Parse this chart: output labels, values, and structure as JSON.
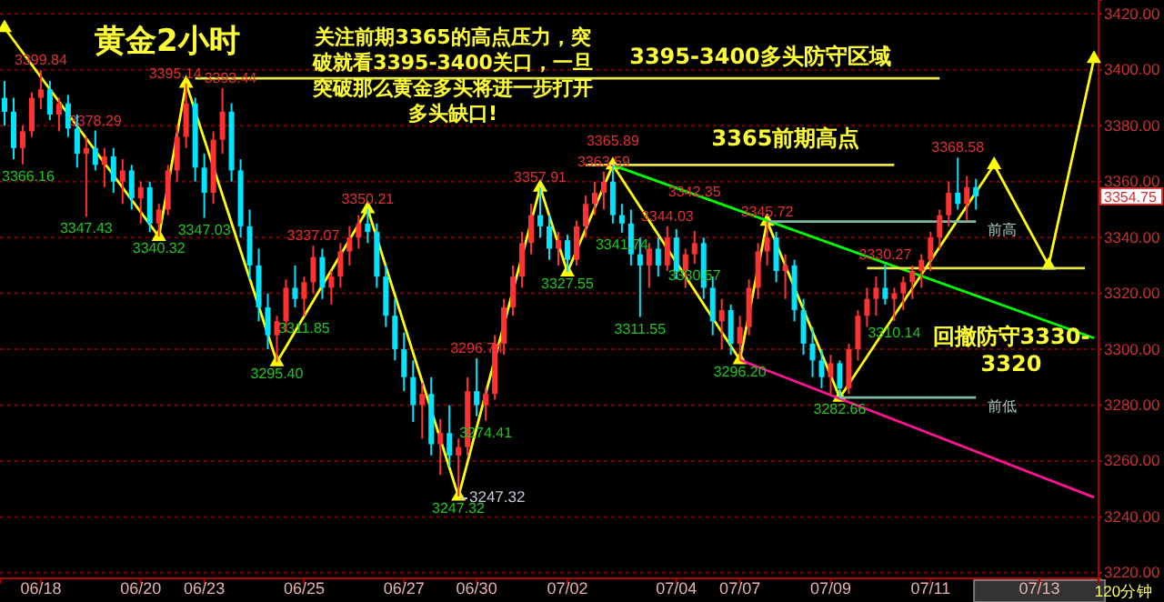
{
  "chart_data": {
    "type": "candlestick",
    "title": "黄金2小时",
    "categories": [
      null,
      null,
      null,
      null,
      "06/18",
      null,
      null,
      null,
      null,
      null,
      null,
      null,
      null,
      null,
      null,
      "06/20",
      null,
      null,
      null,
      null,
      null,
      null,
      "06/23",
      null,
      null,
      null,
      null,
      null,
      null,
      null,
      null,
      null,
      null,
      "06/25",
      null,
      null,
      null,
      null,
      null,
      null,
      null,
      null,
      null,
      null,
      "06/27",
      null,
      null,
      null,
      null,
      null,
      null,
      null,
      "06/30",
      null,
      null,
      null,
      null,
      null,
      null,
      null,
      null,
      null,
      "07/02",
      null,
      null,
      null,
      null,
      null,
      null,
      null,
      null,
      null,
      null,
      null,
      "07/04",
      null,
      null,
      null,
      null,
      null,
      null,
      "07/07",
      null,
      null,
      null,
      null,
      null,
      null,
      null,
      null,
      null,
      "07/09",
      null,
      null,
      null,
      null,
      null,
      null,
      null,
      null,
      null,
      null,
      "07/11",
      null,
      null,
      null,
      null,
      null,
      null,
      null,
      null,
      null,
      null,
      null,
      "07/13",
      null,
      null,
      null,
      null,
      null,
      null
    ],
    "ohlc": [
      [
        3390,
        3396,
        3380,
        3385
      ],
      [
        3385,
        3390,
        3368,
        3372
      ],
      [
        3372,
        3380,
        3366.16,
        3378
      ],
      [
        3378,
        3392,
        3376,
        3390
      ],
      [
        3390,
        3399.84,
        3386,
        3393
      ],
      [
        3393,
        3396,
        3382,
        3384
      ],
      [
        3384,
        3390,
        3378,
        3388
      ],
      [
        3388,
        3391,
        3376,
        3379
      ],
      [
        3379,
        3384,
        3365,
        3370
      ],
      [
        3370,
        3376,
        3347.43,
        3372
      ],
      [
        3372,
        3378.29,
        3364,
        3366
      ],
      [
        3366,
        3372,
        3358,
        3369
      ],
      [
        3369,
        3372,
        3356,
        3360
      ],
      [
        3360,
        3368,
        3352,
        3364
      ],
      [
        3364,
        3366,
        3350,
        3354
      ],
      [
        3354,
        3360,
        3345,
        3358
      ],
      [
        3358,
        3360,
        3342,
        3345
      ],
      [
        3345,
        3352,
        3340.32,
        3350
      ],
      [
        3350,
        3366,
        3348,
        3364
      ],
      [
        3364,
        3380,
        3360,
        3376
      ],
      [
        3376,
        3395.14,
        3372,
        3388
      ],
      [
        3388,
        3390,
        3360,
        3365
      ],
      [
        3365,
        3370,
        3347.03,
        3356
      ],
      [
        3356,
        3378,
        3352,
        3375
      ],
      [
        3375,
        3393.44,
        3370,
        3385
      ],
      [
        3385,
        3388,
        3360,
        3364
      ],
      [
        3364,
        3368,
        3340,
        3344
      ],
      [
        3344,
        3350,
        3325,
        3330
      ],
      [
        3330,
        3336,
        3310,
        3315
      ],
      [
        3315,
        3320,
        3300,
        3305
      ],
      [
        3305,
        3312,
        3295.4,
        3310
      ],
      [
        3310,
        3325,
        3306,
        3322
      ],
      [
        3322,
        3330,
        3315,
        3318
      ],
      [
        3318,
        3326,
        3311.85,
        3324
      ],
      [
        3324,
        3337.07,
        3320,
        3333
      ],
      [
        3333,
        3336,
        3318,
        3322
      ],
      [
        3322,
        3328,
        3316,
        3326
      ],
      [
        3326,
        3338,
        3322,
        3335
      ],
      [
        3335,
        3344,
        3330,
        3340
      ],
      [
        3340,
        3348,
        3336,
        3345
      ],
      [
        3345,
        3350.21,
        3338,
        3342
      ],
      [
        3342,
        3345,
        3322,
        3326
      ],
      [
        3326,
        3330,
        3308,
        3312
      ],
      [
        3312,
        3318,
        3296,
        3300
      ],
      [
        3300,
        3306,
        3285,
        3290
      ],
      [
        3290,
        3296,
        3274,
        3280
      ],
      [
        3280,
        3288,
        3268,
        3284
      ],
      [
        3284,
        3290,
        3262,
        3266
      ],
      [
        3266,
        3275,
        3255,
        3270
      ],
      [
        3270,
        3280,
        3258,
        3262
      ],
      [
        3262,
        3268,
        3247.32,
        3265
      ],
      [
        3265,
        3290,
        3262,
        3285
      ],
      [
        3285,
        3296.74,
        3276,
        3280
      ],
      [
        3280,
        3286,
        3274.41,
        3284
      ],
      [
        3284,
        3305,
        3282,
        3302
      ],
      [
        3302,
        3318,
        3298,
        3315
      ],
      [
        3315,
        3330,
        3312,
        3326
      ],
      [
        3326,
        3342,
        3322,
        3338
      ],
      [
        3338,
        3352,
        3334,
        3348
      ],
      [
        3348,
        3357.91,
        3340,
        3344
      ],
      [
        3344,
        3348,
        3332,
        3336
      ],
      [
        3336,
        3342,
        3330,
        3339
      ],
      [
        3339,
        3341,
        3327.55,
        3332
      ],
      [
        3332,
        3346,
        3330,
        3344
      ],
      [
        3344,
        3355,
        3340,
        3352
      ],
      [
        3352,
        3360,
        3348,
        3356
      ],
      [
        3356,
        3363.59,
        3350,
        3360
      ],
      [
        3360,
        3365.89,
        3345,
        3348
      ],
      [
        3348,
        3352,
        3341.74,
        3345
      ],
      [
        3345,
        3350,
        3330,
        3334
      ],
      [
        3334,
        3340,
        3311.55,
        3330
      ],
      [
        3330,
        3338,
        3322,
        3336
      ],
      [
        3336,
        3340,
        3326,
        3330
      ],
      [
        3330,
        3344.03,
        3328,
        3340
      ],
      [
        3340,
        3343,
        3325,
        3328
      ],
      [
        3328,
        3336,
        3322,
        3334
      ],
      [
        3334,
        3342.35,
        3330.57,
        3338
      ],
      [
        3338,
        3340,
        3318,
        3322
      ],
      [
        3322,
        3326,
        3305,
        3310
      ],
      [
        3310,
        3318,
        3300,
        3314
      ],
      [
        3314,
        3316,
        3298,
        3302
      ],
      [
        3302,
        3312,
        3296.2,
        3308
      ],
      [
        3308,
        3325,
        3305,
        3322
      ],
      [
        3322,
        3338,
        3318,
        3335
      ],
      [
        3335,
        3345.72,
        3330,
        3340
      ],
      [
        3340,
        3342,
        3324,
        3328
      ],
      [
        3328,
        3334,
        3318,
        3330
      ],
      [
        3330,
        3332,
        3310,
        3314
      ],
      [
        3314,
        3318,
        3298,
        3302
      ],
      [
        3302,
        3308,
        3290,
        3296
      ],
      [
        3296,
        3300,
        3286,
        3290
      ],
      [
        3290,
        3298,
        3284,
        3295
      ],
      [
        3295,
        3296,
        3282.66,
        3286
      ],
      [
        3286,
        3302,
        3284,
        3300
      ],
      [
        3300,
        3314,
        3296,
        3312
      ],
      [
        3312,
        3322,
        3308,
        3318
      ],
      [
        3318,
        3326,
        3312,
        3322
      ],
      [
        3322,
        3330.27,
        3316,
        3318
      ],
      [
        3318,
        3322,
        3310.14,
        3320
      ],
      [
        3320,
        3326,
        3314,
        3324
      ],
      [
        3324,
        3330,
        3318,
        3328
      ],
      [
        3328,
        3334,
        3322,
        3332
      ],
      [
        3332,
        3342,
        3328,
        3340
      ],
      [
        3340,
        3350,
        3336,
        3348
      ],
      [
        3348,
        3360,
        3344,
        3356
      ],
      [
        3356,
        3368.58,
        3350,
        3352
      ],
      [
        3352,
        3362,
        3346,
        3358
      ],
      [
        3358,
        3361,
        3350,
        3354.75
      ],
      null,
      null,
      null,
      null,
      null,
      null,
      null,
      null,
      null,
      null,
      null,
      null,
      null
    ],
    "colors": [
      "#00e5ff",
      "#00e5ff",
      "#ff3232",
      "#ff3232",
      "#ff3232",
      "#00e5ff",
      "#ff3232",
      "#00e5ff",
      "#00e5ff",
      "#ff3232",
      "#00e5ff",
      "#ff3232",
      "#00e5ff",
      "#ff3232",
      "#00e5ff",
      "#ff3232",
      "#00e5ff",
      "#ff3232",
      "#ff3232",
      "#ff3232",
      "#ff3232",
      "#00e5ff",
      "#00e5ff",
      "#ff3232",
      "#ff3232",
      "#00e5ff",
      "#00e5ff",
      "#00e5ff",
      "#00e5ff",
      "#00e5ff",
      "#ff3232",
      "#ff3232",
      "#00e5ff",
      "#ff3232",
      "#ff3232",
      "#00e5ff",
      "#ff3232",
      "#ff3232",
      "#ff3232",
      "#ff3232",
      "#00e5ff",
      "#00e5ff",
      "#00e5ff",
      "#00e5ff",
      "#00e5ff",
      "#00e5ff",
      "#ff3232",
      "#00e5ff",
      "#ff3232",
      "#00e5ff",
      "#ff3232",
      "#ff3232",
      "#00e5ff",
      "#ff3232",
      "#ff3232",
      "#ff3232",
      "#ff3232",
      "#ff3232",
      "#ff3232",
      "#00e5ff",
      "#00e5ff",
      "#ff3232",
      "#00e5ff",
      "#ff3232",
      "#ff3232",
      "#ff3232",
      "#ff3232",
      "#00e5ff",
      "#00e5ff",
      "#00e5ff",
      "#00e5ff",
      "#ff3232",
      "#00e5ff",
      "#ff3232",
      "#00e5ff",
      "#ff3232",
      "#ff3232",
      "#00e5ff",
      "#00e5ff",
      "#ff3232",
      "#00e5ff",
      "#ff3232",
      "#ff3232",
      "#ff3232",
      "#ff3232",
      "#00e5ff",
      "#ff3232",
      "#00e5ff",
      "#00e5ff",
      "#00e5ff",
      "#00e5ff",
      "#ff3232",
      "#00e5ff",
      "#ff3232",
      "#ff3232",
      "#ff3232",
      "#ff3232",
      "#00e5ff",
      "#ff3232",
      "#ff3232",
      "#ff3232",
      "#ff3232",
      "#ff3232",
      "#ff3232",
      "#ff3232",
      "#00e5ff",
      "#ff3232",
      "#00e5ff",
      null,
      null,
      null,
      null,
      null,
      null,
      null,
      null,
      null,
      null,
      null,
      null,
      null
    ],
    "ylim": [
      3218,
      3425
    ],
    "yticks": [
      {
        "value": 3220,
        "label": "3220.00"
      },
      {
        "value": 3240,
        "label": "3240.00"
      },
      {
        "value": 3260,
        "label": "3260.00"
      },
      {
        "value": 3280,
        "label": "3280.00"
      },
      {
        "value": 3300,
        "label": "3300.00"
      },
      {
        "value": 3320,
        "label": "3320.00"
      },
      {
        "value": 3340,
        "label": "3340.00"
      },
      {
        "value": 3360,
        "label": "3360.00"
      },
      {
        "value": 3380,
        "label": "3380.00"
      },
      {
        "value": 3400,
        "label": "3400.00"
      },
      {
        "value": 3420,
        "label": "3420.00"
      }
    ],
    "grid": "y",
    "series": [
      {
        "type": "line",
        "color": "#ffff00",
        "marker": "triangle",
        "values": [
          3415,
          null,
          null,
          null,
          null,
          null,
          null,
          null,
          null,
          null,
          null,
          null,
          null,
          null,
          null,
          null,
          null,
          3340.3,
          null,
          null,
          3395.1,
          null,
          null,
          null,
          null,
          null,
          null,
          null,
          null,
          null,
          3295.4,
          null,
          null,
          null,
          null,
          null,
          null,
          null,
          null,
          null,
          3350.2,
          null,
          null,
          null,
          null,
          null,
          null,
          null,
          null,
          null,
          3247.3,
          null,
          null,
          null,
          null,
          null,
          null,
          null,
          null,
          3357.9,
          null,
          null,
          3327.6,
          null,
          null,
          null,
          null,
          3365.9,
          null,
          null,
          null,
          null,
          null,
          null,
          null,
          null,
          null,
          null,
          null,
          null,
          null,
          3296.2,
          null,
          null,
          3345.7,
          null,
          null,
          null,
          null,
          null,
          null,
          null,
          3282.7,
          null,
          null,
          null,
          null,
          null,
          null,
          null,
          null,
          null,
          null,
          null,
          null,
          null,
          null,
          null,
          null,
          3366,
          null,
          null,
          null,
          null,
          null,
          3330,
          null,
          null,
          null,
          null,
          3404
        ]
      },
      {
        "type": "line",
        "color": "#00ff00",
        "values": [
          null,
          null,
          null,
          null,
          null,
          null,
          null,
          null,
          null,
          null,
          null,
          null,
          null,
          null,
          null,
          null,
          null,
          null,
          null,
          null,
          null,
          null,
          null,
          null,
          null,
          null,
          null,
          null,
          null,
          null,
          null,
          null,
          null,
          null,
          null,
          null,
          null,
          null,
          null,
          null,
          null,
          null,
          null,
          null,
          null,
          null,
          null,
          null,
          null,
          null,
          null,
          null,
          null,
          null,
          null,
          null,
          null,
          null,
          null,
          null,
          null,
          null,
          null,
          null,
          null,
          null,
          null,
          3365.9,
          null,
          null,
          null,
          null,
          null,
          null,
          null,
          null,
          null,
          null,
          null,
          null,
          null,
          null,
          null,
          null,
          null,
          null,
          null,
          null,
          null,
          null,
          null,
          null,
          null,
          null,
          null,
          null,
          null,
          null,
          null,
          null,
          null,
          null,
          null,
          null,
          null,
          null,
          null,
          null,
          null,
          null,
          null,
          null,
          null,
          null,
          null,
          null,
          null,
          null,
          null,
          null,
          3304
        ]
      },
      {
        "type": "line",
        "color": "#ff1493",
        "values": [
          null,
          null,
          null,
          null,
          null,
          null,
          null,
          null,
          null,
          null,
          null,
          null,
          null,
          null,
          null,
          null,
          null,
          null,
          null,
          null,
          null,
          null,
          null,
          null,
          null,
          null,
          null,
          null,
          null,
          null,
          null,
          null,
          null,
          null,
          null,
          null,
          null,
          null,
          null,
          null,
          null,
          null,
          null,
          null,
          null,
          null,
          null,
          null,
          null,
          null,
          null,
          null,
          null,
          null,
          null,
          null,
          null,
          null,
          null,
          null,
          null,
          null,
          null,
          null,
          null,
          null,
          null,
          null,
          null,
          null,
          null,
          null,
          null,
          null,
          null,
          null,
          null,
          null,
          null,
          null,
          null,
          3296.2,
          null,
          null,
          null,
          null,
          null,
          null,
          null,
          null,
          null,
          null,
          null,
          null,
          null,
          null,
          null,
          null,
          null,
          null,
          null,
          null,
          null,
          null,
          null,
          null,
          null,
          null,
          null,
          null,
          null,
          null,
          null,
          null,
          null,
          null,
          null,
          null,
          null,
          null,
          3247
        ]
      },
      {
        "type": "line",
        "color": "#e8e84a",
        "values": [
          null,
          null,
          null,
          null,
          null,
          null,
          null,
          null,
          null,
          null,
          null,
          null,
          null,
          null,
          null,
          null,
          null,
          null,
          null,
          null,
          null,
          3397,
          null,
          null,
          null,
          null,
          null,
          null,
          null,
          null,
          null,
          null,
          null,
          null,
          null,
          null,
          null,
          null,
          null,
          null,
          null,
          null,
          null,
          null,
          null,
          null,
          null,
          null,
          null,
          null,
          null,
          null,
          null,
          null,
          null,
          null,
          null,
          null,
          null,
          null,
          null,
          null,
          null,
          null,
          null,
          null,
          null,
          null,
          null,
          null,
          null,
          null,
          null,
          null,
          null,
          null,
          null,
          null,
          null,
          null,
          null,
          null,
          null,
          null,
          null,
          null,
          null,
          null,
          null,
          null,
          null,
          null,
          null,
          null,
          null,
          null,
          null,
          null,
          null,
          null,
          null,
          null,
          null,
          3397,
          null,
          null,
          null,
          null,
          null,
          null,
          null,
          null,
          null,
          null,
          null,
          null,
          null,
          null,
          null,
          null,
          null
        ]
      },
      {
        "type": "line",
        "color": "#e8e84a",
        "values": [
          null,
          null,
          null,
          null,
          null,
          null,
          null,
          null,
          null,
          null,
          null,
          null,
          null,
          null,
          null,
          null,
          null,
          null,
          null,
          null,
          null,
          null,
          null,
          null,
          null,
          null,
          null,
          null,
          null,
          null,
          null,
          null,
          null,
          null,
          null,
          null,
          null,
          null,
          null,
          null,
          null,
          null,
          null,
          null,
          null,
          null,
          null,
          null,
          null,
          null,
          null,
          null,
          null,
          null,
          null,
          null,
          null,
          null,
          null,
          null,
          null,
          null,
          null,
          null,
          3366,
          null,
          null,
          null,
          null,
          null,
          null,
          null,
          null,
          null,
          null,
          null,
          null,
          null,
          null,
          null,
          null,
          null,
          null,
          null,
          null,
          null,
          null,
          null,
          null,
          null,
          null,
          null,
          null,
          null,
          null,
          null,
          null,
          null,
          3366,
          null,
          null,
          null,
          null,
          null,
          null,
          null,
          null,
          null,
          null,
          null,
          null,
          null,
          null,
          null,
          null,
          null,
          null,
          null,
          null,
          null,
          null
        ]
      },
      {
        "type": "line",
        "color": "#7fb8a0",
        "values": [
          null,
          null,
          null,
          null,
          null,
          null,
          null,
          null,
          null,
          null,
          null,
          null,
          null,
          null,
          null,
          null,
          null,
          null,
          null,
          null,
          null,
          null,
          null,
          null,
          null,
          null,
          null,
          null,
          null,
          null,
          null,
          null,
          null,
          null,
          null,
          null,
          null,
          null,
          null,
          null,
          null,
          null,
          null,
          null,
          null,
          null,
          null,
          null,
          null,
          null,
          null,
          null,
          null,
          null,
          null,
          null,
          null,
          null,
          null,
          null,
          null,
          null,
          null,
          null,
          null,
          null,
          null,
          null,
          null,
          null,
          null,
          null,
          null,
          null,
          null,
          null,
          null,
          null,
          null,
          null,
          null,
          null,
          null,
          null,
          3345.7,
          null,
          null,
          null,
          null,
          null,
          null,
          null,
          null,
          null,
          null,
          null,
          null,
          null,
          null,
          null,
          null,
          null,
          null,
          null,
          null,
          null,
          null,
          3345.7,
          null,
          null,
          null,
          null,
          null,
          null,
          null,
          null,
          null,
          null,
          null,
          null,
          null
        ]
      },
      {
        "type": "line",
        "color": "#e8e84a",
        "values": [
          null,
          null,
          null,
          null,
          null,
          null,
          null,
          null,
          null,
          null,
          null,
          null,
          null,
          null,
          null,
          null,
          null,
          null,
          null,
          null,
          null,
          null,
          null,
          null,
          null,
          null,
          null,
          null,
          null,
          null,
          null,
          null,
          null,
          null,
          null,
          null,
          null,
          null,
          null,
          null,
          null,
          null,
          null,
          null,
          null,
          null,
          null,
          null,
          null,
          null,
          null,
          null,
          null,
          null,
          null,
          null,
          null,
          null,
          null,
          null,
          null,
          null,
          null,
          null,
          null,
          null,
          null,
          null,
          null,
          null,
          null,
          null,
          null,
          null,
          null,
          null,
          null,
          null,
          null,
          null,
          null,
          null,
          null,
          null,
          null,
          null,
          null,
          null,
          null,
          null,
          null,
          null,
          null,
          null,
          null,
          3329,
          null,
          null,
          null,
          null,
          null,
          null,
          null,
          null,
          null,
          null,
          null,
          null,
          null,
          null,
          null,
          null,
          null,
          null,
          null,
          null,
          null,
          null,
          null,
          3329,
          null
        ]
      },
      {
        "type": "line",
        "color": "#7fb8a0",
        "values": [
          null,
          null,
          null,
          null,
          null,
          null,
          null,
          null,
          null,
          null,
          null,
          null,
          null,
          null,
          null,
          null,
          null,
          null,
          null,
          null,
          null,
          null,
          null,
          null,
          null,
          null,
          null,
          null,
          null,
          null,
          null,
          null,
          null,
          null,
          null,
          null,
          null,
          null,
          null,
          null,
          null,
          null,
          null,
          null,
          null,
          null,
          null,
          null,
          null,
          null,
          null,
          null,
          null,
          null,
          null,
          null,
          null,
          null,
          null,
          null,
          null,
          null,
          null,
          null,
          null,
          null,
          null,
          null,
          null,
          null,
          null,
          null,
          null,
          null,
          null,
          null,
          null,
          null,
          null,
          null,
          null,
          null,
          null,
          null,
          null,
          null,
          null,
          null,
          null,
          null,
          null,
          null,
          3282.7,
          null,
          null,
          null,
          null,
          null,
          null,
          null,
          null,
          null,
          null,
          null,
          null,
          null,
          null,
          3282.7,
          null,
          null,
          null,
          null,
          null,
          null,
          null,
          null,
          null,
          null,
          null,
          null,
          null
        ]
      }
    ],
    "annotations": [
      "关注前期3365的高点压力，突破就看3395-3400关口，一旦突破那么黄金多头将进一步打开多头缺口!",
      "回撤防守3330-3320",
      "120分钟",
      "3395-3400多头防守区域",
      "3365前期高点",
      "3247.32",
      "前高",
      "前低",
      "3354.75",
      {
        "text": "3366.16",
        "y": 3366.16
      },
      {
        "text": "3399.84",
        "y": 3399.84
      },
      {
        "text": "3347.43",
        "y": 3347.43
      },
      {
        "text": "3378.29",
        "y": 3378.29
      },
      {
        "text": "3340.32",
        "y": 3340.32
      },
      {
        "text": "3395.14",
        "y": 3395.14
      },
      {
        "text": "3347.03",
        "y": 3347.03
      },
      {
        "text": "3393.44",
        "y": 3393.44
      },
      {
        "text": "3295.40",
        "y": 3295.4
      },
      {
        "text": "3311.85",
        "y": 3311.85
      },
      {
        "text": "3337.07",
        "y": 3337.07
      },
      {
        "text": "3350.21",
        "y": 3350.21
      },
      "3247.32",
      {
        "text": "3296.74",
        "y": 3296.74
      },
      {
        "text": "3274.41",
        "y": 3274.41
      },
      {
        "text": "3357.91",
        "y": 3357.91
      },
      {
        "text": "3327.55",
        "y": 3327.55
      },
      {
        "text": "3363.59",
        "y": 3363.59
      },
      {
        "text": "3365.89",
        "y": 3365.89
      },
      {
        "text": "3341.74",
        "y": 3341.74
      },
      {
        "text": "3311.55",
        "y": 3311.55
      },
      {
        "text": "3344.03",
        "y": 3344.03
      },
      {
        "text": "3342.35",
        "y": 3342.35
      },
      {
        "text": "3330.57",
        "y": 3330.57
      },
      {
        "text": "3296.20",
        "y": 3296.2
      },
      {
        "text": "3345.72",
        "y": 3345.72
      },
      {
        "text": "3282.66",
        "y": 3282.66
      },
      {
        "text": "3330.27",
        "y": 3330.27
      },
      {
        "text": "3310.14",
        "y": 3310.14
      },
      {
        "text": "3368.58",
        "y": 3368.58
      }
    ]
  }
}
